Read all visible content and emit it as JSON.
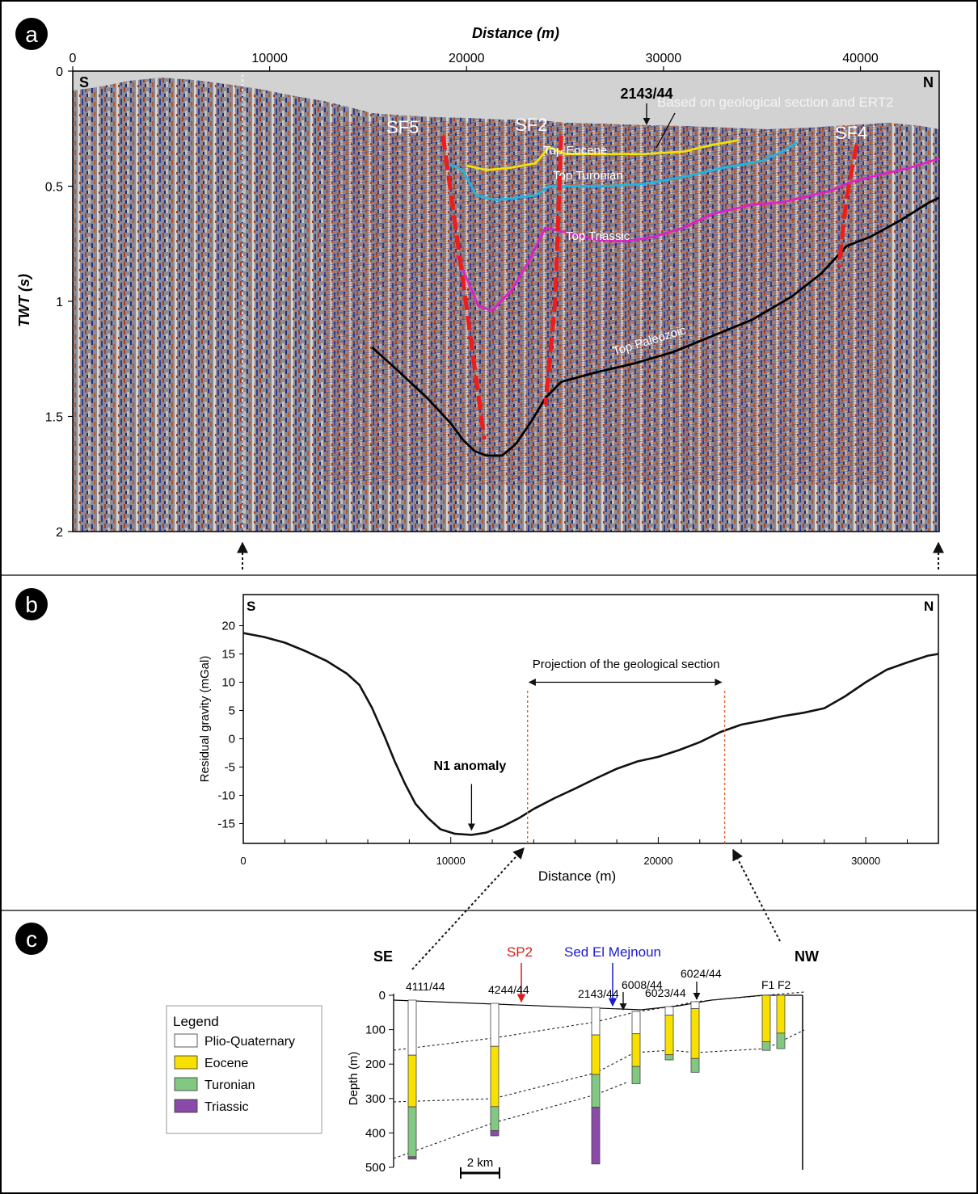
{
  "panel_a": {
    "label": "a",
    "x_title": "Distance (m)",
    "y_title": "TWT (s)",
    "x_ticks": [
      0,
      10000,
      20000,
      30000,
      40000
    ],
    "y_ticks": [
      0,
      0.5,
      1,
      1.5,
      2
    ],
    "xlim": [
      0,
      44000
    ],
    "ylim": [
      0,
      2
    ],
    "end_labels": {
      "left": "S",
      "right": "N"
    },
    "well_label": "2143/44",
    "note": "Based on geological section and ERT2",
    "faults": [
      {
        "name": "SF5",
        "points": [
          [
            18800,
            0.28
          ],
          [
            19800,
            0.9
          ],
          [
            20900,
            1.6
          ]
        ]
      },
      {
        "name": "SF2",
        "points": [
          [
            24800,
            0.28
          ],
          [
            24500,
            1.0
          ],
          [
            24000,
            1.45
          ]
        ]
      },
      {
        "name": "SF4",
        "points": [
          [
            39800,
            0.32
          ],
          [
            39300,
            0.55
          ],
          [
            38900,
            0.85
          ]
        ]
      }
    ],
    "horizons": [
      {
        "name": "Top Eocene",
        "color": "#f2e200",
        "points": [
          [
            20000,
            0.41
          ],
          [
            21000,
            0.43
          ],
          [
            22200,
            0.42
          ],
          [
            23500,
            0.4
          ],
          [
            24200,
            0.33
          ],
          [
            25000,
            0.36
          ],
          [
            27000,
            0.36
          ],
          [
            29000,
            0.36
          ],
          [
            31000,
            0.35
          ],
          [
            32500,
            0.32
          ],
          [
            33800,
            0.3
          ]
        ]
      },
      {
        "name": "Top Turonian",
        "color": "#1fb6e0",
        "points": [
          [
            19000,
            0.4
          ],
          [
            19800,
            0.43
          ],
          [
            20500,
            0.54
          ],
          [
            21500,
            0.56
          ],
          [
            22500,
            0.55
          ],
          [
            23500,
            0.54
          ],
          [
            24200,
            0.5
          ],
          [
            25000,
            0.5
          ],
          [
            27000,
            0.5
          ],
          [
            29000,
            0.49
          ],
          [
            31000,
            0.46
          ],
          [
            33000,
            0.42
          ],
          [
            35000,
            0.39
          ],
          [
            36000,
            0.35
          ],
          [
            36800,
            0.31
          ]
        ]
      },
      {
        "name": "Top Triassic",
        "color": "#e020c8",
        "points": [
          [
            19500,
            0.8
          ],
          [
            20000,
            0.9
          ],
          [
            20600,
            1.02
          ],
          [
            21300,
            1.04
          ],
          [
            22300,
            0.95
          ],
          [
            23200,
            0.82
          ],
          [
            24000,
            0.68
          ],
          [
            25000,
            0.7
          ],
          [
            26500,
            0.73
          ],
          [
            28000,
            0.74
          ],
          [
            29500,
            0.72
          ],
          [
            31000,
            0.68
          ],
          [
            32500,
            0.62
          ],
          [
            34500,
            0.58
          ],
          [
            36000,
            0.57
          ],
          [
            38500,
            0.52
          ],
          [
            39000,
            0.5
          ],
          [
            39600,
            0.48
          ],
          [
            41000,
            0.45
          ],
          [
            42500,
            0.42
          ],
          [
            44000,
            0.38
          ]
        ]
      },
      {
        "name": "Top Paleozoic",
        "color": "#000000",
        "points": [
          [
            15200,
            1.2
          ],
          [
            16500,
            1.3
          ],
          [
            18000,
            1.42
          ],
          [
            19200,
            1.53
          ],
          [
            19800,
            1.6
          ],
          [
            20400,
            1.65
          ],
          [
            21000,
            1.67
          ],
          [
            21800,
            1.67
          ],
          [
            22500,
            1.62
          ],
          [
            23300,
            1.52
          ],
          [
            24000,
            1.42
          ],
          [
            24800,
            1.35
          ],
          [
            26500,
            1.31
          ],
          [
            28500,
            1.27
          ],
          [
            30500,
            1.22
          ],
          [
            32500,
            1.15
          ],
          [
            34500,
            1.08
          ],
          [
            36500,
            0.98
          ],
          [
            38000,
            0.88
          ],
          [
            39300,
            0.76
          ],
          [
            40500,
            0.72
          ],
          [
            42000,
            0.65
          ],
          [
            43500,
            0.57
          ],
          [
            44000,
            0.55
          ]
        ]
      }
    ]
  },
  "chart_data": {
    "type": "line",
    "panel_label": "b",
    "xlabel": "Distance (m)",
    "ylabel": "Residual gravity (mGal)",
    "x_ticks": [
      0,
      10000,
      20000,
      30000
    ],
    "y_ticks": [
      20,
      15,
      10,
      5,
      0,
      -5,
      -10,
      -15
    ],
    "xlim": [
      0,
      33500
    ],
    "ylim": [
      -18.5,
      25.5
    ],
    "end_labels": {
      "left": "S",
      "right": "N"
    },
    "series": [
      {
        "values": [
          [
            0,
            18.7
          ],
          [
            1000,
            18
          ],
          [
            2000,
            17
          ],
          [
            3000,
            15.5
          ],
          [
            4000,
            13.8
          ],
          [
            5000,
            11.5
          ],
          [
            5600,
            9.5
          ],
          [
            6200,
            5.5
          ],
          [
            6800,
            0.5
          ],
          [
            7300,
            -4
          ],
          [
            7800,
            -8
          ],
          [
            8300,
            -11.5
          ],
          [
            8900,
            -14
          ],
          [
            9500,
            -16
          ],
          [
            10200,
            -16.8
          ],
          [
            11000,
            -17
          ],
          [
            11700,
            -16.6
          ],
          [
            12500,
            -15.5
          ],
          [
            13300,
            -14
          ],
          [
            14000,
            -12.4
          ],
          [
            15000,
            -10.5
          ],
          [
            16000,
            -8.8
          ],
          [
            17000,
            -7
          ],
          [
            18000,
            -5.3
          ],
          [
            19000,
            -4
          ],
          [
            20000,
            -3.2
          ],
          [
            21000,
            -2
          ],
          [
            22000,
            -0.6
          ],
          [
            23000,
            1.2
          ],
          [
            24000,
            2.5
          ],
          [
            25000,
            3.2
          ],
          [
            26000,
            4
          ],
          [
            27000,
            4.6
          ],
          [
            28000,
            5.4
          ],
          [
            29000,
            7.5
          ],
          [
            30000,
            10
          ],
          [
            31000,
            12.2
          ],
          [
            32000,
            13.5
          ],
          [
            33000,
            14.7
          ],
          [
            33500,
            15
          ]
        ]
      }
    ],
    "annotations": {
      "anomaly": {
        "label": "N1 anomaly",
        "x": 11000,
        "y": -17
      },
      "projection": {
        "label": "Projection of the geological section",
        "x_start": 13700,
        "x_end": 23200
      }
    }
  },
  "panel_c": {
    "label": "c",
    "ends": {
      "left": "SE",
      "right": "NW"
    },
    "markers": [
      {
        "label": "SP2",
        "color": "#e01818"
      },
      {
        "label": "Sed El Mejnoun",
        "color": "#1a1ad0"
      }
    ],
    "depth_axis": {
      "title": "Depth (m)",
      "ticks": [
        0,
        100,
        200,
        300,
        400,
        500
      ]
    },
    "scale_label": "2 km",
    "legend": {
      "title": "Legend",
      "items": [
        {
          "label": "Plio-Quaternary",
          "color": "#ffffff"
        },
        {
          "label": "Eocene",
          "color": "#f8e000"
        },
        {
          "label": "Turonian",
          "color": "#82c882"
        },
        {
          "label": "Triassic",
          "color": "#8a4aa8"
        }
      ]
    },
    "wells": [
      {
        "name": "4111/44",
        "top": 0,
        "layers": [
          [
            0,
            160,
            "#ffffff"
          ],
          [
            160,
            310,
            "#f8e000"
          ],
          [
            310,
            455,
            "#82c882"
          ],
          [
            455,
            462,
            "#8a4aa8"
          ]
        ]
      },
      {
        "name": "4244/44",
        "top": 0,
        "layers": [
          [
            0,
            125,
            "#ffffff"
          ],
          [
            125,
            300,
            "#f8e000"
          ],
          [
            300,
            370,
            "#82c882"
          ],
          [
            370,
            385,
            "#8a4aa8"
          ]
        ]
      },
      {
        "name": "2143/44",
        "top": 0,
        "layers": [
          [
            0,
            80,
            "#ffffff"
          ],
          [
            80,
            195,
            "#f8e000"
          ],
          [
            195,
            290,
            "#82c882"
          ],
          [
            290,
            455,
            "#8a4aa8"
          ]
        ]
      },
      {
        "name": "6008/44",
        "top": 0,
        "layers": [
          [
            0,
            65,
            "#ffffff"
          ],
          [
            65,
            160,
            "#f8e000"
          ],
          [
            160,
            210,
            "#82c882"
          ]
        ]
      },
      {
        "name": "6023/44",
        "top": 0,
        "layers": [
          [
            0,
            25,
            "#ffffff"
          ],
          [
            25,
            140,
            "#f8e000"
          ],
          [
            140,
            155,
            "#82c882"
          ]
        ]
      },
      {
        "name": "6024/44",
        "top": 0,
        "layers": [
          [
            0,
            20,
            "#ffffff"
          ],
          [
            20,
            165,
            "#f8e000"
          ],
          [
            165,
            205,
            "#82c882"
          ]
        ]
      },
      {
        "name": "F1",
        "top": 0,
        "layers": [
          [
            0,
            0,
            "#ffffff"
          ],
          [
            0,
            135,
            "#f8e000"
          ],
          [
            135,
            160,
            "#82c882"
          ]
        ]
      },
      {
        "name": "F2",
        "top": 0,
        "layers": [
          [
            0,
            0,
            "#ffffff"
          ],
          [
            0,
            110,
            "#f8e000"
          ],
          [
            110,
            155,
            "#82c882"
          ]
        ]
      }
    ]
  }
}
